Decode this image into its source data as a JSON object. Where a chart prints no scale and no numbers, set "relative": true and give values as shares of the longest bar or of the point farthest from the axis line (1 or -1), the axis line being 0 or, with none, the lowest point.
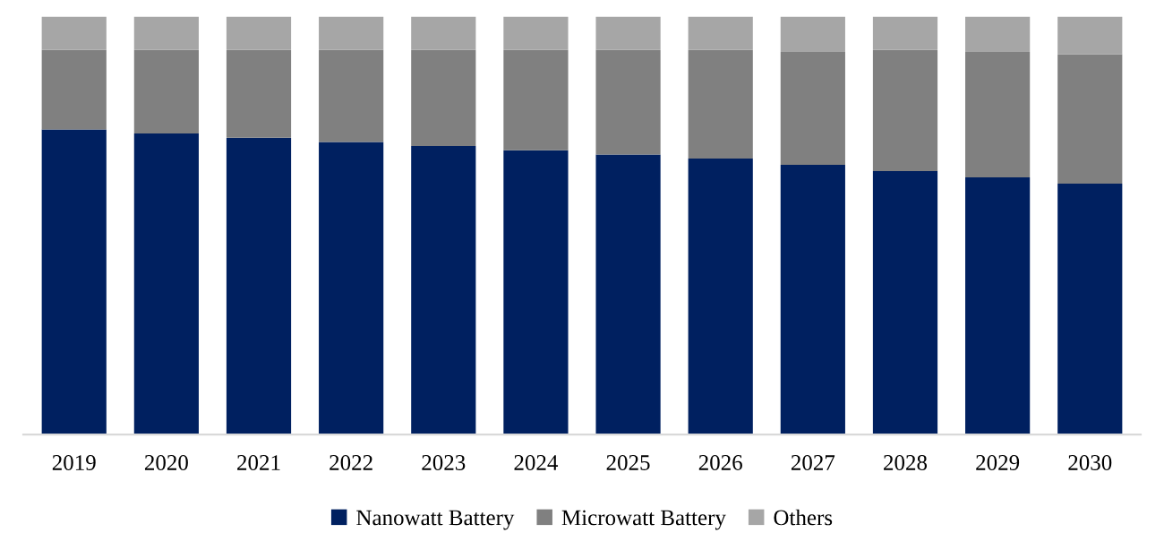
{
  "chart_data": {
    "type": "bar",
    "stacked": true,
    "relative": true,
    "legend": "bottom",
    "grid": false,
    "categories": [
      "2019",
      "2020",
      "2021",
      "2022",
      "2023",
      "2024",
      "2025",
      "2026",
      "2027",
      "2028",
      "2029",
      "2030"
    ],
    "series": [
      {
        "name": "Nanowatt Battery",
        "color": "#002060",
        "values": [
          0.73,
          0.72,
          0.71,
          0.7,
          0.69,
          0.68,
          0.67,
          0.66,
          0.645,
          0.63,
          0.615,
          0.6
        ]
      },
      {
        "name": "Microwatt Battery",
        "color": "#808080",
        "values": [
          0.19,
          0.2,
          0.21,
          0.22,
          0.23,
          0.24,
          0.25,
          0.26,
          0.27,
          0.29,
          0.3,
          0.31
        ]
      },
      {
        "name": "Others",
        "color": "#a6a6a6",
        "values": [
          0.08,
          0.08,
          0.08,
          0.08,
          0.08,
          0.08,
          0.08,
          0.08,
          0.085,
          0.08,
          0.085,
          0.09
        ]
      }
    ]
  }
}
